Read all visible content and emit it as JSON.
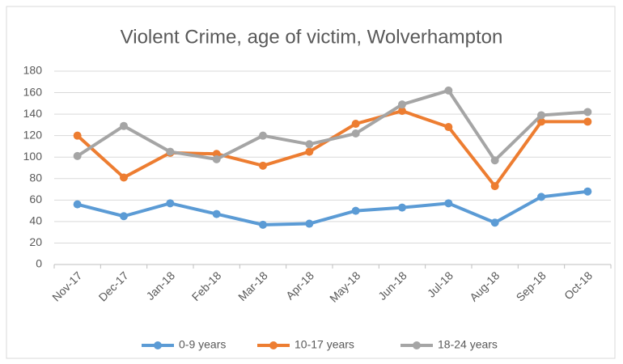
{
  "chart_data": {
    "type": "line",
    "title": "Violent Crime, age of victim, Wolverhampton",
    "categories": [
      "Nov-17",
      "Dec-17",
      "Jan-18",
      "Feb-18",
      "Mar-18",
      "Apr-18",
      "May-18",
      "Jun-18",
      "Jul-18",
      "Aug-18",
      "Sep-18",
      "Oct-18"
    ],
    "series": [
      {
        "name": "0-9 years",
        "color": "#5b9bd5",
        "values": [
          56,
          45,
          57,
          47,
          37,
          38,
          50,
          53,
          57,
          39,
          63,
          68
        ]
      },
      {
        "name": "10-17 years",
        "color": "#ed7d31",
        "values": [
          120,
          81,
          104,
          103,
          92,
          105,
          131,
          143,
          128,
          73,
          133,
          133
        ]
      },
      {
        "name": "18-24 years",
        "color": "#a5a5a5",
        "values": [
          101,
          129,
          105,
          98,
          120,
          112,
          122,
          149,
          162,
          97,
          139,
          142
        ]
      }
    ],
    "ylim": [
      0,
      180
    ],
    "yticks": [
      0,
      20,
      40,
      60,
      80,
      100,
      120,
      140,
      160,
      180
    ],
    "grid": true,
    "legend": "bottom"
  }
}
